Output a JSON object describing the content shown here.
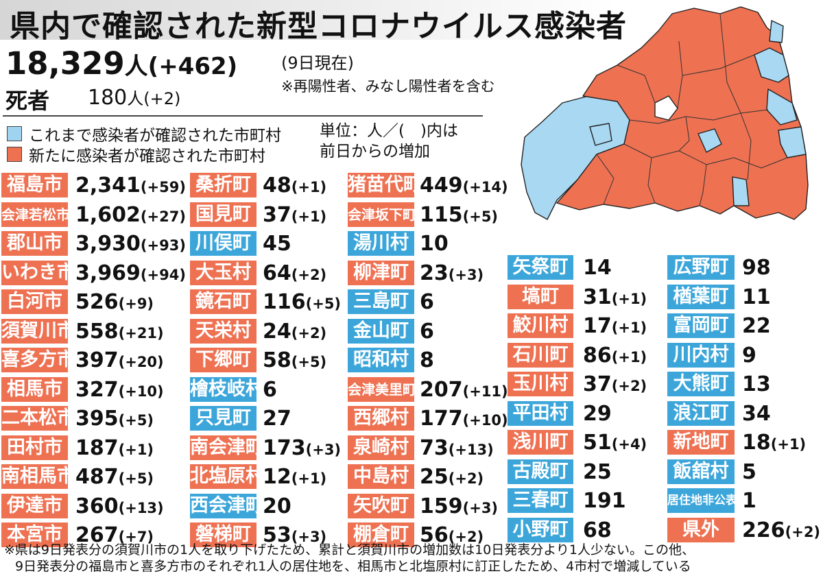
{
  "title": "県内で確認された新型コロナウイルス感染者",
  "summary": {
    "total_count": "18,329",
    "total_unit": "人",
    "total_delta": "(+462)",
    "as_of": "(9日現在)",
    "note": "※再陽性者、みなし陽性者を含む",
    "deaths_label": "死者",
    "deaths_count": "180",
    "deaths_unit": "人",
    "deaths_delta": "(+2)"
  },
  "legend": {
    "confirmed_before": "これまで感染者が確認された市町村",
    "newly_confirmed": "新たに感染者が確認された市町村",
    "unit_line1": "単位：人／(　)内は",
    "unit_line2": "前日からの増加"
  },
  "colors": {
    "new_cases": "#ee7152",
    "previous_cases": "#3ca6da",
    "no_cases": "#ffffff"
  },
  "columns": [
    [
      {
        "name": "福島市",
        "count": "2,341",
        "delta": "(+59)",
        "status": "new"
      },
      {
        "name": "会津若松市",
        "count": "1,602",
        "delta": "(+27)",
        "status": "new"
      },
      {
        "name": "郡山市",
        "count": "3,930",
        "delta": "(+93)",
        "status": "new"
      },
      {
        "name": "いわき市",
        "count": "3,969",
        "delta": "(+94)",
        "status": "new"
      },
      {
        "name": "白河市",
        "count": "526",
        "delta": "(+9)",
        "status": "new"
      },
      {
        "name": "須賀川市",
        "count": "558",
        "delta": "(+21)",
        "status": "new"
      },
      {
        "name": "喜多方市",
        "count": "397",
        "delta": "(+20)",
        "status": "new"
      },
      {
        "name": "相馬市",
        "count": "327",
        "delta": "(+10)",
        "status": "new"
      },
      {
        "name": "二本松市",
        "count": "395",
        "delta": "(+5)",
        "status": "new"
      },
      {
        "name": "田村市",
        "count": "187",
        "delta": "(+1)",
        "status": "new"
      },
      {
        "name": "南相馬市",
        "count": "487",
        "delta": "(+5)",
        "status": "new"
      },
      {
        "name": "伊達市",
        "count": "360",
        "delta": "(+13)",
        "status": "new"
      },
      {
        "name": "本宮市",
        "count": "267",
        "delta": "(+7)",
        "status": "new"
      }
    ],
    [
      {
        "name": "桑折町",
        "count": "48",
        "delta": "(+1)",
        "status": "new"
      },
      {
        "name": "国見町",
        "count": "37",
        "delta": "(+1)",
        "status": "new"
      },
      {
        "name": "川俣町",
        "count": "45",
        "delta": "",
        "status": "previous"
      },
      {
        "name": "大玉村",
        "count": "64",
        "delta": "(+2)",
        "status": "new"
      },
      {
        "name": "鏡石町",
        "count": "116",
        "delta": "(+5)",
        "status": "new"
      },
      {
        "name": "天栄村",
        "count": "24",
        "delta": "(+2)",
        "status": "new"
      },
      {
        "name": "下郷町",
        "count": "58",
        "delta": "(+5)",
        "status": "new"
      },
      {
        "name": "檜枝岐村",
        "count": "6",
        "delta": "",
        "status": "previous"
      },
      {
        "name": "只見町",
        "count": "27",
        "delta": "",
        "status": "previous"
      },
      {
        "name": "南会津町",
        "count": "173",
        "delta": "(+3)",
        "status": "new"
      },
      {
        "name": "北塩原村",
        "count": "12",
        "delta": "(+1)",
        "status": "new"
      },
      {
        "name": "西会津町",
        "count": "20",
        "delta": "",
        "status": "previous"
      },
      {
        "name": "磐梯町",
        "count": "53",
        "delta": "(+3)",
        "status": "new"
      }
    ],
    [
      {
        "name": "猪苗代町",
        "count": "449",
        "delta": "(+14)",
        "status": "new"
      },
      {
        "name": "会津坂下町",
        "count": "115",
        "delta": "(+5)",
        "status": "new"
      },
      {
        "name": "湯川村",
        "count": "10",
        "delta": "",
        "status": "previous"
      },
      {
        "name": "柳津町",
        "count": "23",
        "delta": "(+3)",
        "status": "new"
      },
      {
        "name": "三島町",
        "count": "6",
        "delta": "",
        "status": "previous"
      },
      {
        "name": "金山町",
        "count": "6",
        "delta": "",
        "status": "previous"
      },
      {
        "name": "昭和村",
        "count": "8",
        "delta": "",
        "status": "previous"
      },
      {
        "name": "会津美里町",
        "count": "207",
        "delta": "(+11)",
        "status": "new"
      },
      {
        "name": "西郷村",
        "count": "177",
        "delta": "(+10)",
        "status": "new"
      },
      {
        "name": "泉崎村",
        "count": "73",
        "delta": "(+13)",
        "status": "new"
      },
      {
        "name": "中島村",
        "count": "25",
        "delta": "(+2)",
        "status": "new"
      },
      {
        "name": "矢吹町",
        "count": "159",
        "delta": "(+3)",
        "status": "new"
      },
      {
        "name": "棚倉町",
        "count": "56",
        "delta": "(+2)",
        "status": "new"
      }
    ],
    [
      {
        "name": "矢祭町",
        "count": "14",
        "delta": "",
        "status": "previous"
      },
      {
        "name": "塙町",
        "count": "31",
        "delta": "(+1)",
        "status": "new"
      },
      {
        "name": "鮫川村",
        "count": "17",
        "delta": "(+1)",
        "status": "new"
      },
      {
        "name": "石川町",
        "count": "86",
        "delta": "(+1)",
        "status": "new"
      },
      {
        "name": "玉川村",
        "count": "37",
        "delta": "(+2)",
        "status": "new"
      },
      {
        "name": "平田村",
        "count": "29",
        "delta": "",
        "status": "previous"
      },
      {
        "name": "浅川町",
        "count": "51",
        "delta": "(+4)",
        "status": "new"
      },
      {
        "name": "古殿町",
        "count": "25",
        "delta": "",
        "status": "previous"
      },
      {
        "name": "三春町",
        "count": "191",
        "delta": "",
        "status": "previous"
      },
      {
        "name": "小野町",
        "count": "68",
        "delta": "",
        "status": "previous"
      }
    ],
    [
      {
        "name": "広野町",
        "count": "98",
        "delta": "",
        "status": "previous"
      },
      {
        "name": "楢葉町",
        "count": "11",
        "delta": "",
        "status": "previous"
      },
      {
        "name": "富岡町",
        "count": "22",
        "delta": "",
        "status": "previous"
      },
      {
        "name": "川内村",
        "count": "9",
        "delta": "",
        "status": "previous"
      },
      {
        "name": "大熊町",
        "count": "13",
        "delta": "",
        "status": "previous"
      },
      {
        "name": "浪江町",
        "count": "34",
        "delta": "",
        "status": "previous"
      },
      {
        "name": "新地町",
        "count": "18",
        "delta": "(+1)",
        "status": "new"
      },
      {
        "name": "飯舘村",
        "count": "5",
        "delta": "",
        "status": "previous"
      },
      {
        "name": "居住地非公表",
        "count": "1",
        "delta": "",
        "status": "previous"
      },
      {
        "name": "県外",
        "count": "226",
        "delta": "(+2)",
        "status": "new"
      }
    ]
  ],
  "footnote": {
    "line1": "※県は9日発表分の須賀川市の1人を取り下げたため、累計と須賀川市の増加数は10日発表分より1人少ない。この他、",
    "line2": "9日発表分の福島市と喜多方市のそれぞれ1人の居住地を、相馬市と北塩原村に訂正したため、4市村で増減している"
  }
}
